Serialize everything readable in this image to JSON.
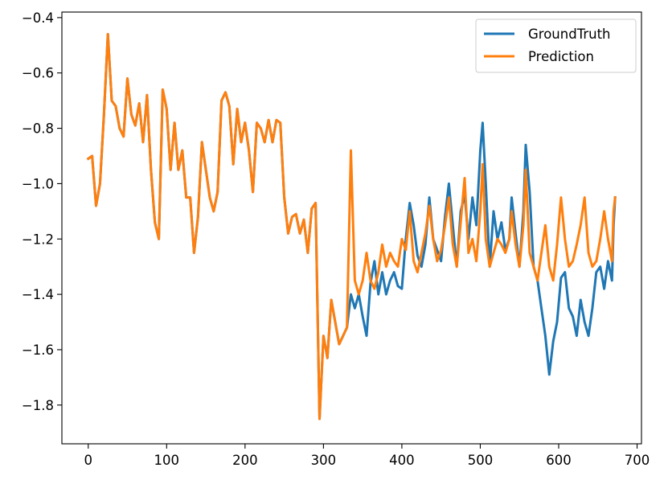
{
  "chart_data": {
    "type": "line",
    "title": "",
    "xlabel": "",
    "ylabel": "",
    "xlim": [
      -33.6,
      705.6
    ],
    "ylim": [
      -1.94,
      -0.38
    ],
    "xticks": [
      0,
      100,
      200,
      300,
      400,
      500,
      600,
      700
    ],
    "yticks": [
      -1.8,
      -1.6,
      -1.4,
      -1.2,
      -1.0,
      -0.8,
      -0.6,
      -0.4
    ],
    "xtick_labels": [
      "0",
      "100",
      "200",
      "300",
      "400",
      "500",
      "600",
      "700"
    ],
    "ytick_labels": [
      "−1.8",
      "−1.6",
      "−1.4",
      "−1.2",
      "−1.0",
      "−0.8",
      "−0.6",
      "−0.4"
    ],
    "grid": false,
    "legend_position": "upper right",
    "series": [
      {
        "name": "GroundTruth",
        "color": "#1f77b4",
        "points": [
          [
            0,
            -0.91
          ],
          [
            5,
            -0.9
          ],
          [
            10,
            -1.08
          ],
          [
            15,
            -1.0
          ],
          [
            20,
            -0.75
          ],
          [
            25,
            -0.46
          ],
          [
            30,
            -0.7
          ],
          [
            35,
            -0.72
          ],
          [
            40,
            -0.8
          ],
          [
            45,
            -0.83
          ],
          [
            50,
            -0.62
          ],
          [
            55,
            -0.75
          ],
          [
            60,
            -0.79
          ],
          [
            65,
            -0.71
          ],
          [
            70,
            -0.85
          ],
          [
            75,
            -0.68
          ],
          [
            80,
            -0.95
          ],
          [
            85,
            -1.14
          ],
          [
            90,
            -1.2
          ],
          [
            95,
            -0.66
          ],
          [
            100,
            -0.73
          ],
          [
            105,
            -0.95
          ],
          [
            110,
            -0.78
          ],
          [
            115,
            -0.95
          ],
          [
            120,
            -0.88
          ],
          [
            125,
            -1.05
          ],
          [
            130,
            -1.05
          ],
          [
            135,
            -1.25
          ],
          [
            140,
            -1.12
          ],
          [
            145,
            -0.85
          ],
          [
            150,
            -0.95
          ],
          [
            155,
            -1.05
          ],
          [
            160,
            -1.1
          ],
          [
            165,
            -1.03
          ],
          [
            170,
            -0.7
          ],
          [
            175,
            -0.67
          ],
          [
            180,
            -0.72
          ],
          [
            185,
            -0.93
          ],
          [
            190,
            -0.73
          ],
          [
            195,
            -0.85
          ],
          [
            200,
            -0.78
          ],
          [
            205,
            -0.88
          ],
          [
            210,
            -1.03
          ],
          [
            215,
            -0.78
          ],
          [
            220,
            -0.8
          ],
          [
            225,
            -0.85
          ],
          [
            230,
            -0.77
          ],
          [
            235,
            -0.85
          ],
          [
            240,
            -0.77
          ],
          [
            245,
            -0.78
          ],
          [
            250,
            -1.05
          ],
          [
            255,
            -1.18
          ],
          [
            260,
            -1.12
          ],
          [
            265,
            -1.11
          ],
          [
            270,
            -1.18
          ],
          [
            275,
            -1.13
          ],
          [
            280,
            -1.25
          ],
          [
            285,
            -1.09
          ],
          [
            290,
            -1.07
          ],
          [
            295,
            -1.85
          ],
          [
            300,
            -1.55
          ],
          [
            305,
            -1.63
          ],
          [
            310,
            -1.42
          ],
          [
            315,
            -1.5
          ],
          [
            320,
            -1.58
          ],
          [
            325,
            -1.55
          ],
          [
            330,
            -1.52
          ],
          [
            335,
            -1.4
          ],
          [
            340,
            -1.45
          ],
          [
            345,
            -1.4
          ],
          [
            350,
            -1.48
          ],
          [
            355,
            -1.55
          ],
          [
            360,
            -1.36
          ],
          [
            365,
            -1.28
          ],
          [
            370,
            -1.4
          ],
          [
            375,
            -1.32
          ],
          [
            380,
            -1.4
          ],
          [
            385,
            -1.35
          ],
          [
            390,
            -1.32
          ],
          [
            395,
            -1.37
          ],
          [
            400,
            -1.38
          ],
          [
            405,
            -1.2
          ],
          [
            410,
            -1.07
          ],
          [
            415,
            -1.15
          ],
          [
            420,
            -1.26
          ],
          [
            425,
            -1.3
          ],
          [
            430,
            -1.22
          ],
          [
            435,
            -1.05
          ],
          [
            440,
            -1.2
          ],
          [
            445,
            -1.24
          ],
          [
            450,
            -1.28
          ],
          [
            455,
            -1.12
          ],
          [
            460,
            -1.0
          ],
          [
            465,
            -1.15
          ],
          [
            470,
            -1.3
          ],
          [
            475,
            -1.1
          ],
          [
            480,
            -1.04
          ],
          [
            485,
            -1.2
          ],
          [
            490,
            -1.05
          ],
          [
            495,
            -1.15
          ],
          [
            500,
            -0.88
          ],
          [
            503,
            -0.78
          ],
          [
            507,
            -1.0
          ],
          [
            512,
            -1.3
          ],
          [
            517,
            -1.1
          ],
          [
            522,
            -1.2
          ],
          [
            527,
            -1.14
          ],
          [
            532,
            -1.24
          ],
          [
            537,
            -1.2
          ],
          [
            540,
            -1.05
          ],
          [
            545,
            -1.18
          ],
          [
            550,
            -1.3
          ],
          [
            555,
            -1.1
          ],
          [
            558,
            -0.86
          ],
          [
            563,
            -1.03
          ],
          [
            568,
            -1.3
          ],
          [
            573,
            -1.35
          ],
          [
            578,
            -1.45
          ],
          [
            583,
            -1.55
          ],
          [
            588,
            -1.69
          ],
          [
            593,
            -1.57
          ],
          [
            598,
            -1.5
          ],
          [
            603,
            -1.34
          ],
          [
            608,
            -1.32
          ],
          [
            613,
            -1.45
          ],
          [
            618,
            -1.48
          ],
          [
            623,
            -1.55
          ],
          [
            628,
            -1.42
          ],
          [
            633,
            -1.5
          ],
          [
            638,
            -1.55
          ],
          [
            643,
            -1.45
          ],
          [
            648,
            -1.32
          ],
          [
            653,
            -1.3
          ],
          [
            658,
            -1.38
          ],
          [
            663,
            -1.28
          ],
          [
            668,
            -1.35
          ],
          [
            670,
            -1.15
          ],
          [
            672,
            -1.05
          ]
        ]
      },
      {
        "name": "Prediction",
        "color": "#ff7f0e",
        "points": [
          [
            0,
            -0.91
          ],
          [
            5,
            -0.9
          ],
          [
            10,
            -1.08
          ],
          [
            15,
            -1.0
          ],
          [
            20,
            -0.75
          ],
          [
            25,
            -0.46
          ],
          [
            30,
            -0.7
          ],
          [
            35,
            -0.72
          ],
          [
            40,
            -0.8
          ],
          [
            45,
            -0.83
          ],
          [
            50,
            -0.62
          ],
          [
            55,
            -0.75
          ],
          [
            60,
            -0.79
          ],
          [
            65,
            -0.71
          ],
          [
            70,
            -0.85
          ],
          [
            75,
            -0.68
          ],
          [
            80,
            -0.95
          ],
          [
            85,
            -1.14
          ],
          [
            90,
            -1.2
          ],
          [
            95,
            -0.66
          ],
          [
            100,
            -0.73
          ],
          [
            105,
            -0.95
          ],
          [
            110,
            -0.78
          ],
          [
            115,
            -0.95
          ],
          [
            120,
            -0.88
          ],
          [
            125,
            -1.05
          ],
          [
            130,
            -1.05
          ],
          [
            135,
            -1.25
          ],
          [
            140,
            -1.12
          ],
          [
            145,
            -0.85
          ],
          [
            150,
            -0.95
          ],
          [
            155,
            -1.05
          ],
          [
            160,
            -1.1
          ],
          [
            165,
            -1.03
          ],
          [
            170,
            -0.7
          ],
          [
            175,
            -0.67
          ],
          [
            180,
            -0.72
          ],
          [
            185,
            -0.93
          ],
          [
            190,
            -0.73
          ],
          [
            195,
            -0.85
          ],
          [
            200,
            -0.78
          ],
          [
            205,
            -0.88
          ],
          [
            210,
            -1.03
          ],
          [
            215,
            -0.78
          ],
          [
            220,
            -0.8
          ],
          [
            225,
            -0.85
          ],
          [
            230,
            -0.77
          ],
          [
            235,
            -0.85
          ],
          [
            240,
            -0.77
          ],
          [
            245,
            -0.78
          ],
          [
            250,
            -1.05
          ],
          [
            255,
            -1.18
          ],
          [
            260,
            -1.12
          ],
          [
            265,
            -1.11
          ],
          [
            270,
            -1.18
          ],
          [
            275,
            -1.13
          ],
          [
            280,
            -1.25
          ],
          [
            285,
            -1.09
          ],
          [
            290,
            -1.07
          ],
          [
            295,
            -1.85
          ],
          [
            300,
            -1.55
          ],
          [
            305,
            -1.63
          ],
          [
            310,
            -1.42
          ],
          [
            315,
            -1.5
          ],
          [
            320,
            -1.58
          ],
          [
            325,
            -1.55
          ],
          [
            330,
            -1.52
          ],
          [
            335,
            -0.88
          ],
          [
            340,
            -1.35
          ],
          [
            345,
            -1.4
          ],
          [
            350,
            -1.35
          ],
          [
            355,
            -1.25
          ],
          [
            360,
            -1.35
          ],
          [
            365,
            -1.38
          ],
          [
            370,
            -1.32
          ],
          [
            375,
            -1.22
          ],
          [
            380,
            -1.3
          ],
          [
            385,
            -1.25
          ],
          [
            390,
            -1.28
          ],
          [
            395,
            -1.3
          ],
          [
            400,
            -1.2
          ],
          [
            405,
            -1.24
          ],
          [
            410,
            -1.1
          ],
          [
            415,
            -1.28
          ],
          [
            420,
            -1.32
          ],
          [
            425,
            -1.25
          ],
          [
            430,
            -1.18
          ],
          [
            435,
            -1.08
          ],
          [
            440,
            -1.2
          ],
          [
            445,
            -1.28
          ],
          [
            450,
            -1.24
          ],
          [
            455,
            -1.15
          ],
          [
            460,
            -1.05
          ],
          [
            465,
            -1.22
          ],
          [
            470,
            -1.3
          ],
          [
            475,
            -1.14
          ],
          [
            480,
            -0.98
          ],
          [
            485,
            -1.25
          ],
          [
            490,
            -1.2
          ],
          [
            495,
            -1.28
          ],
          [
            500,
            -1.1
          ],
          [
            503,
            -0.93
          ],
          [
            507,
            -1.2
          ],
          [
            512,
            -1.3
          ],
          [
            517,
            -1.25
          ],
          [
            522,
            -1.2
          ],
          [
            527,
            -1.22
          ],
          [
            532,
            -1.25
          ],
          [
            537,
            -1.2
          ],
          [
            540,
            -1.1
          ],
          [
            545,
            -1.22
          ],
          [
            550,
            -1.3
          ],
          [
            555,
            -1.15
          ],
          [
            558,
            -0.95
          ],
          [
            563,
            -1.25
          ],
          [
            568,
            -1.3
          ],
          [
            573,
            -1.35
          ],
          [
            578,
            -1.25
          ],
          [
            583,
            -1.15
          ],
          [
            588,
            -1.3
          ],
          [
            593,
            -1.35
          ],
          [
            598,
            -1.22
          ],
          [
            603,
            -1.05
          ],
          [
            608,
            -1.2
          ],
          [
            613,
            -1.3
          ],
          [
            618,
            -1.28
          ],
          [
            623,
            -1.22
          ],
          [
            628,
            -1.15
          ],
          [
            633,
            -1.05
          ],
          [
            638,
            -1.25
          ],
          [
            643,
            -1.3
          ],
          [
            648,
            -1.28
          ],
          [
            653,
            -1.2
          ],
          [
            658,
            -1.1
          ],
          [
            663,
            -1.2
          ],
          [
            668,
            -1.28
          ],
          [
            670,
            -1.1
          ],
          [
            672,
            -1.05
          ]
        ]
      }
    ]
  }
}
